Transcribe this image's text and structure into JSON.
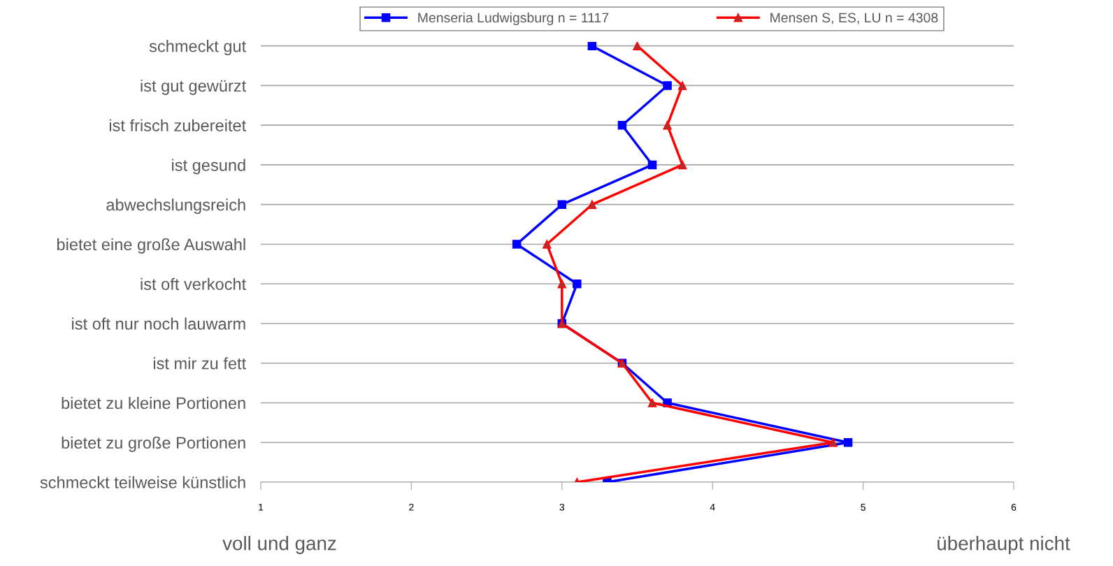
{
  "chart_data": {
    "type": "line",
    "orientation": "horizontal",
    "categories": [
      "schmeckt gut",
      "ist gut gewürzt",
      "ist frisch zubereitet",
      "ist gesund",
      "abwechslungsreich",
      "bietet eine große Auswahl",
      "ist oft verkocht",
      "ist oft nur noch lauwarm",
      "ist mir zu fett",
      "bietet zu kleine Portionen",
      "bietet zu große Portionen",
      "schmeckt teilweise künstlich"
    ],
    "series": [
      {
        "name": "Menseria Ludwigsburg n = 1117",
        "color": "#0000ff",
        "marker": "square",
        "values": [
          3.2,
          3.7,
          3.4,
          3.6,
          3.0,
          2.7,
          3.1,
          3.0,
          3.4,
          3.7,
          4.9,
          3.3
        ]
      },
      {
        "name": "Mensen S, ES, LU n = 4308",
        "color": "#ff0000",
        "marker": "triangle",
        "values": [
          3.5,
          3.8,
          3.7,
          3.8,
          3.2,
          2.9,
          3.0,
          3.0,
          3.4,
          3.6,
          4.8,
          3.1
        ]
      }
    ],
    "xlim": [
      1,
      6
    ],
    "xticks": [
      1,
      2,
      3,
      4,
      5,
      6
    ],
    "grid": "y",
    "legend": "top",
    "line_style": "solid",
    "annotations": [
      "voll und ganz",
      "überhaupt nicht"
    ]
  }
}
